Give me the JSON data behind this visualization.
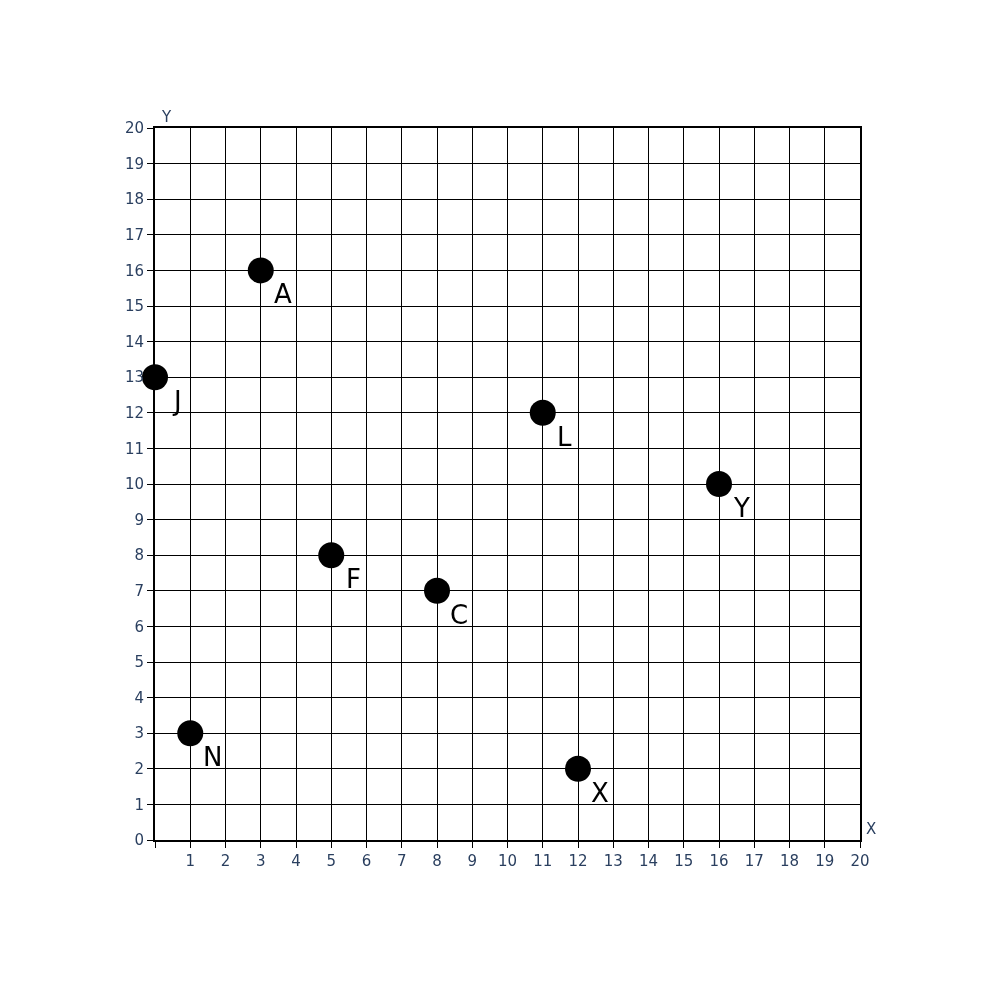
{
  "chart_data": {
    "type": "scatter",
    "xlabel": "X",
    "ylabel": "Y",
    "x": [
      3,
      0,
      11,
      16,
      5,
      8,
      1,
      12
    ],
    "values": [
      16,
      13,
      12,
      10,
      8,
      7,
      3,
      2
    ],
    "color": "#000000",
    "marker": "circle",
    "xlim": [
      0,
      20
    ],
    "ylim": [
      0,
      20
    ],
    "xticks": [
      {
        "value": 0,
        "label": null
      },
      1,
      2,
      3,
      4,
      5,
      6,
      7,
      8,
      9,
      10,
      11,
      12,
      13,
      14,
      15,
      16,
      17,
      18,
      19,
      20
    ],
    "yticks": [
      0,
      1,
      2,
      3,
      4,
      5,
      6,
      7,
      8,
      9,
      10,
      11,
      12,
      13,
      14,
      15,
      16,
      17,
      18,
      19,
      20
    ],
    "grid": true,
    "annotations": [
      {
        "text": "A",
        "x": 3,
        "y": 16
      },
      {
        "text": "J",
        "x": 0,
        "y": 13
      },
      {
        "text": "L",
        "x": 11,
        "y": 12
      },
      {
        "text": "Y",
        "x": 16,
        "y": 10
      },
      {
        "text": "F",
        "x": 5,
        "y": 8
      },
      {
        "text": "C",
        "x": 8,
        "y": 7
      },
      {
        "text": "N",
        "x": 1,
        "y": 3
      },
      {
        "text": "X",
        "x": 12,
        "y": 2
      }
    ]
  }
}
